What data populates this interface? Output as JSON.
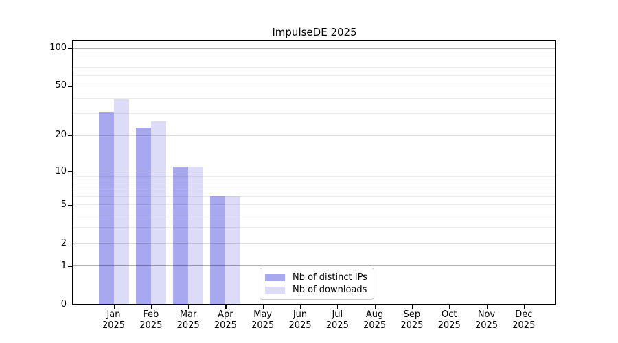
{
  "chart_data": {
    "type": "bar",
    "title": "ImpulseDE 2025",
    "categories": [
      "Jan",
      "Feb",
      "Mar",
      "Apr",
      "May",
      "Jun",
      "Jul",
      "Aug",
      "Sep",
      "Oct",
      "Nov",
      "Dec"
    ],
    "category_year": "2025",
    "series": [
      {
        "name": "Nb of distinct IPs",
        "color": "#a8a8f0",
        "values": [
          31,
          23,
          11,
          6,
          0,
          0,
          0,
          0,
          0,
          0,
          0,
          0
        ]
      },
      {
        "name": "Nb of downloads",
        "color": "#dcdcf8",
        "values": [
          39,
          26,
          11,
          6,
          0,
          0,
          0,
          0,
          0,
          0,
          0,
          0
        ]
      }
    ],
    "yscale": "log1p",
    "ylim": [
      0,
      100
    ],
    "yticks": [
      0,
      1,
      2,
      5,
      10,
      20,
      50,
      100
    ],
    "major_grid_values": [
      1,
      10,
      100
    ],
    "minor_grid_values": [
      2,
      3,
      4,
      6,
      7,
      8,
      9,
      20,
      30,
      40,
      60,
      70,
      80,
      90
    ],
    "labeled_minor_grid_values": [
      2,
      5,
      20,
      50
    ],
    "grid": "horizontal only, drawn over bars",
    "legend_position": "lower center, inside axes",
    "colors": {
      "distinct_ips": "#a8a8f0",
      "downloads": "#dcdcf8",
      "major_grid": "#b3b3b3",
      "minor_grid": "#ededed",
      "spine": "#000000"
    }
  }
}
